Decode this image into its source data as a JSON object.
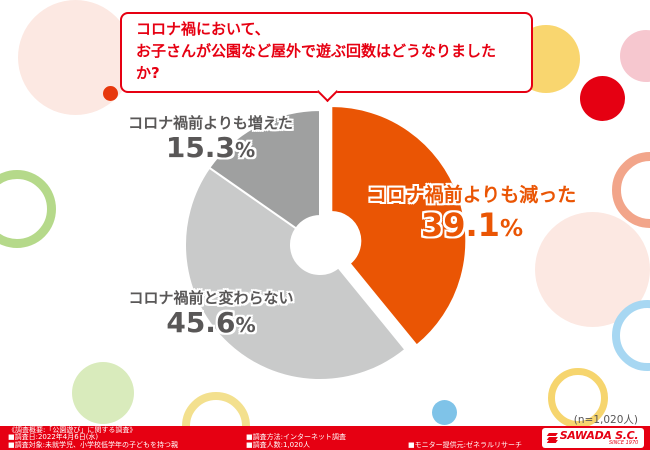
{
  "title": {
    "line1": "コロナ禍において、",
    "line2": "お子さんが公園など屋外で遊ぶ回数はどうなりましたか?"
  },
  "chart_data": {
    "type": "pie",
    "donut": true,
    "start_angle_deg": 0,
    "direction": "clockwise",
    "sample_note": "(n=1,020人)",
    "segments": [
      {
        "label": "コロナ禍前よりも減った",
        "value": 39.1,
        "display": "39.1",
        "unit": "%",
        "color": "#ea5504",
        "exploded": true
      },
      {
        "label": "コロナ禍前と変わらない",
        "value": 45.6,
        "display": "45.6",
        "unit": "%",
        "color": "#c9caca",
        "exploded": false
      },
      {
        "label": "コロナ禍前よりも増えた",
        "value": 15.3,
        "display": "15.3",
        "unit": "%",
        "color": "#9fa0a0",
        "exploded": false
      }
    ]
  },
  "footer": {
    "overview": "《調査概要:「公園遊び」に関する調査》",
    "date": "■調査日:2022年4月6日(水)",
    "target": "■調査対象:未就学児、小学校低学年の子どもを持つ親",
    "method": "■調査方法:インターネット調査",
    "count": "■調査人数:1,020人",
    "monitor": "■モニター提供元:ゼネラルリサーチ"
  },
  "logo": {
    "name": "SAWADA S.C.",
    "tagline": "SINCE 1970"
  },
  "colors": {
    "accent_red": "#e60012",
    "orange": "#ea5504",
    "light_gray": "#c9caca",
    "dark_gray": "#9fa0a0",
    "text_gray": "#595757"
  }
}
